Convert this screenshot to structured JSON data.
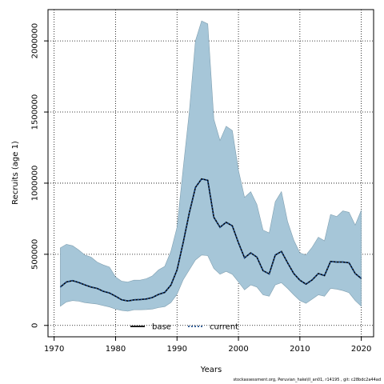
{
  "chart_data": {
    "type": "area",
    "xlabel": "Years",
    "ylabel": "Recruits (age 1)",
    "xlim": [
      1969,
      2022
    ],
    "ylim": [
      -80000,
      2220000
    ],
    "x_ticks": [
      1970,
      1980,
      1990,
      2000,
      2010,
      2020
    ],
    "y_ticks": [
      0,
      500000,
      1000000,
      1500000,
      2000000
    ],
    "grid": true,
    "legend_position": "bottom-center",
    "band_color": "#a6c6d8",
    "x": [
      1971,
      1972,
      1973,
      1974,
      1975,
      1976,
      1977,
      1978,
      1979,
      1980,
      1981,
      1982,
      1983,
      1984,
      1985,
      1986,
      1987,
      1988,
      1989,
      1990,
      1991,
      1992,
      1993,
      1994,
      1995,
      1996,
      1997,
      1998,
      1999,
      2000,
      2001,
      2002,
      2003,
      2004,
      2005,
      2006,
      2007,
      2008,
      2009,
      2010,
      2011,
      2012,
      2013,
      2014,
      2015,
      2016,
      2017,
      2018,
      2019,
      2020
    ],
    "upper": [
      545000,
      570000,
      560000,
      530000,
      495000,
      480000,
      445000,
      425000,
      410000,
      340000,
      310000,
      305000,
      318000,
      318000,
      328000,
      348000,
      390000,
      415000,
      520000,
      690000,
      1100000,
      1500000,
      2000000,
      2140000,
      2120000,
      1450000,
      1300000,
      1400000,
      1370000,
      1090000,
      900000,
      940000,
      850000,
      670000,
      650000,
      870000,
      940000,
      730000,
      600000,
      510000,
      495000,
      550000,
      620000,
      595000,
      780000,
      765000,
      805000,
      795000,
      705000,
      810000
    ],
    "lower": [
      135000,
      165000,
      175000,
      170000,
      160000,
      155000,
      150000,
      140000,
      130000,
      115000,
      105000,
      100000,
      110000,
      110000,
      112000,
      115000,
      125000,
      132000,
      160000,
      220000,
      320000,
      390000,
      460000,
      495000,
      490000,
      400000,
      360000,
      380000,
      360000,
      305000,
      250000,
      285000,
      270000,
      215000,
      205000,
      285000,
      300000,
      260000,
      215000,
      175000,
      155000,
      185000,
      215000,
      205000,
      260000,
      255000,
      245000,
      230000,
      175000,
      135000
    ],
    "series": [
      {
        "name": "base",
        "style": "solid",
        "color": "#000000",
        "values": [
          270000,
          305000,
          315000,
          302000,
          285000,
          270000,
          260000,
          240000,
          228000,
          205000,
          180000,
          172000,
          180000,
          182000,
          186000,
          196000,
          218000,
          232000,
          283000,
          390000,
          580000,
          790000,
          970000,
          1030000,
          1020000,
          760000,
          690000,
          725000,
          700000,
          580000,
          475000,
          510000,
          480000,
          385000,
          362000,
          495000,
          520000,
          440000,
          365000,
          318000,
          290000,
          320000,
          365000,
          350000,
          450000,
          445000,
          445000,
          440000,
          365000,
          330000
        ]
      },
      {
        "name": "current",
        "style": "dotted",
        "color": "#1f4e8c",
        "values": [
          270000,
          305000,
          315000,
          302000,
          285000,
          270000,
          260000,
          240000,
          228000,
          205000,
          180000,
          172000,
          180000,
          182000,
          186000,
          196000,
          218000,
          232000,
          283000,
          390000,
          580000,
          790000,
          970000,
          1030000,
          1020000,
          760000,
          690000,
          725000,
          700000,
          580000,
          475000,
          510000,
          480000,
          385000,
          362000,
          495000,
          520000,
          440000,
          365000,
          318000,
          290000,
          320000,
          365000,
          350000,
          450000,
          445000,
          445000,
          440000,
          365000,
          330000
        ]
      }
    ]
  },
  "footer_text": "stockassessment.org, Peruvian_hake\\II_an01, r14195 , git: c28bdc2a44ad"
}
